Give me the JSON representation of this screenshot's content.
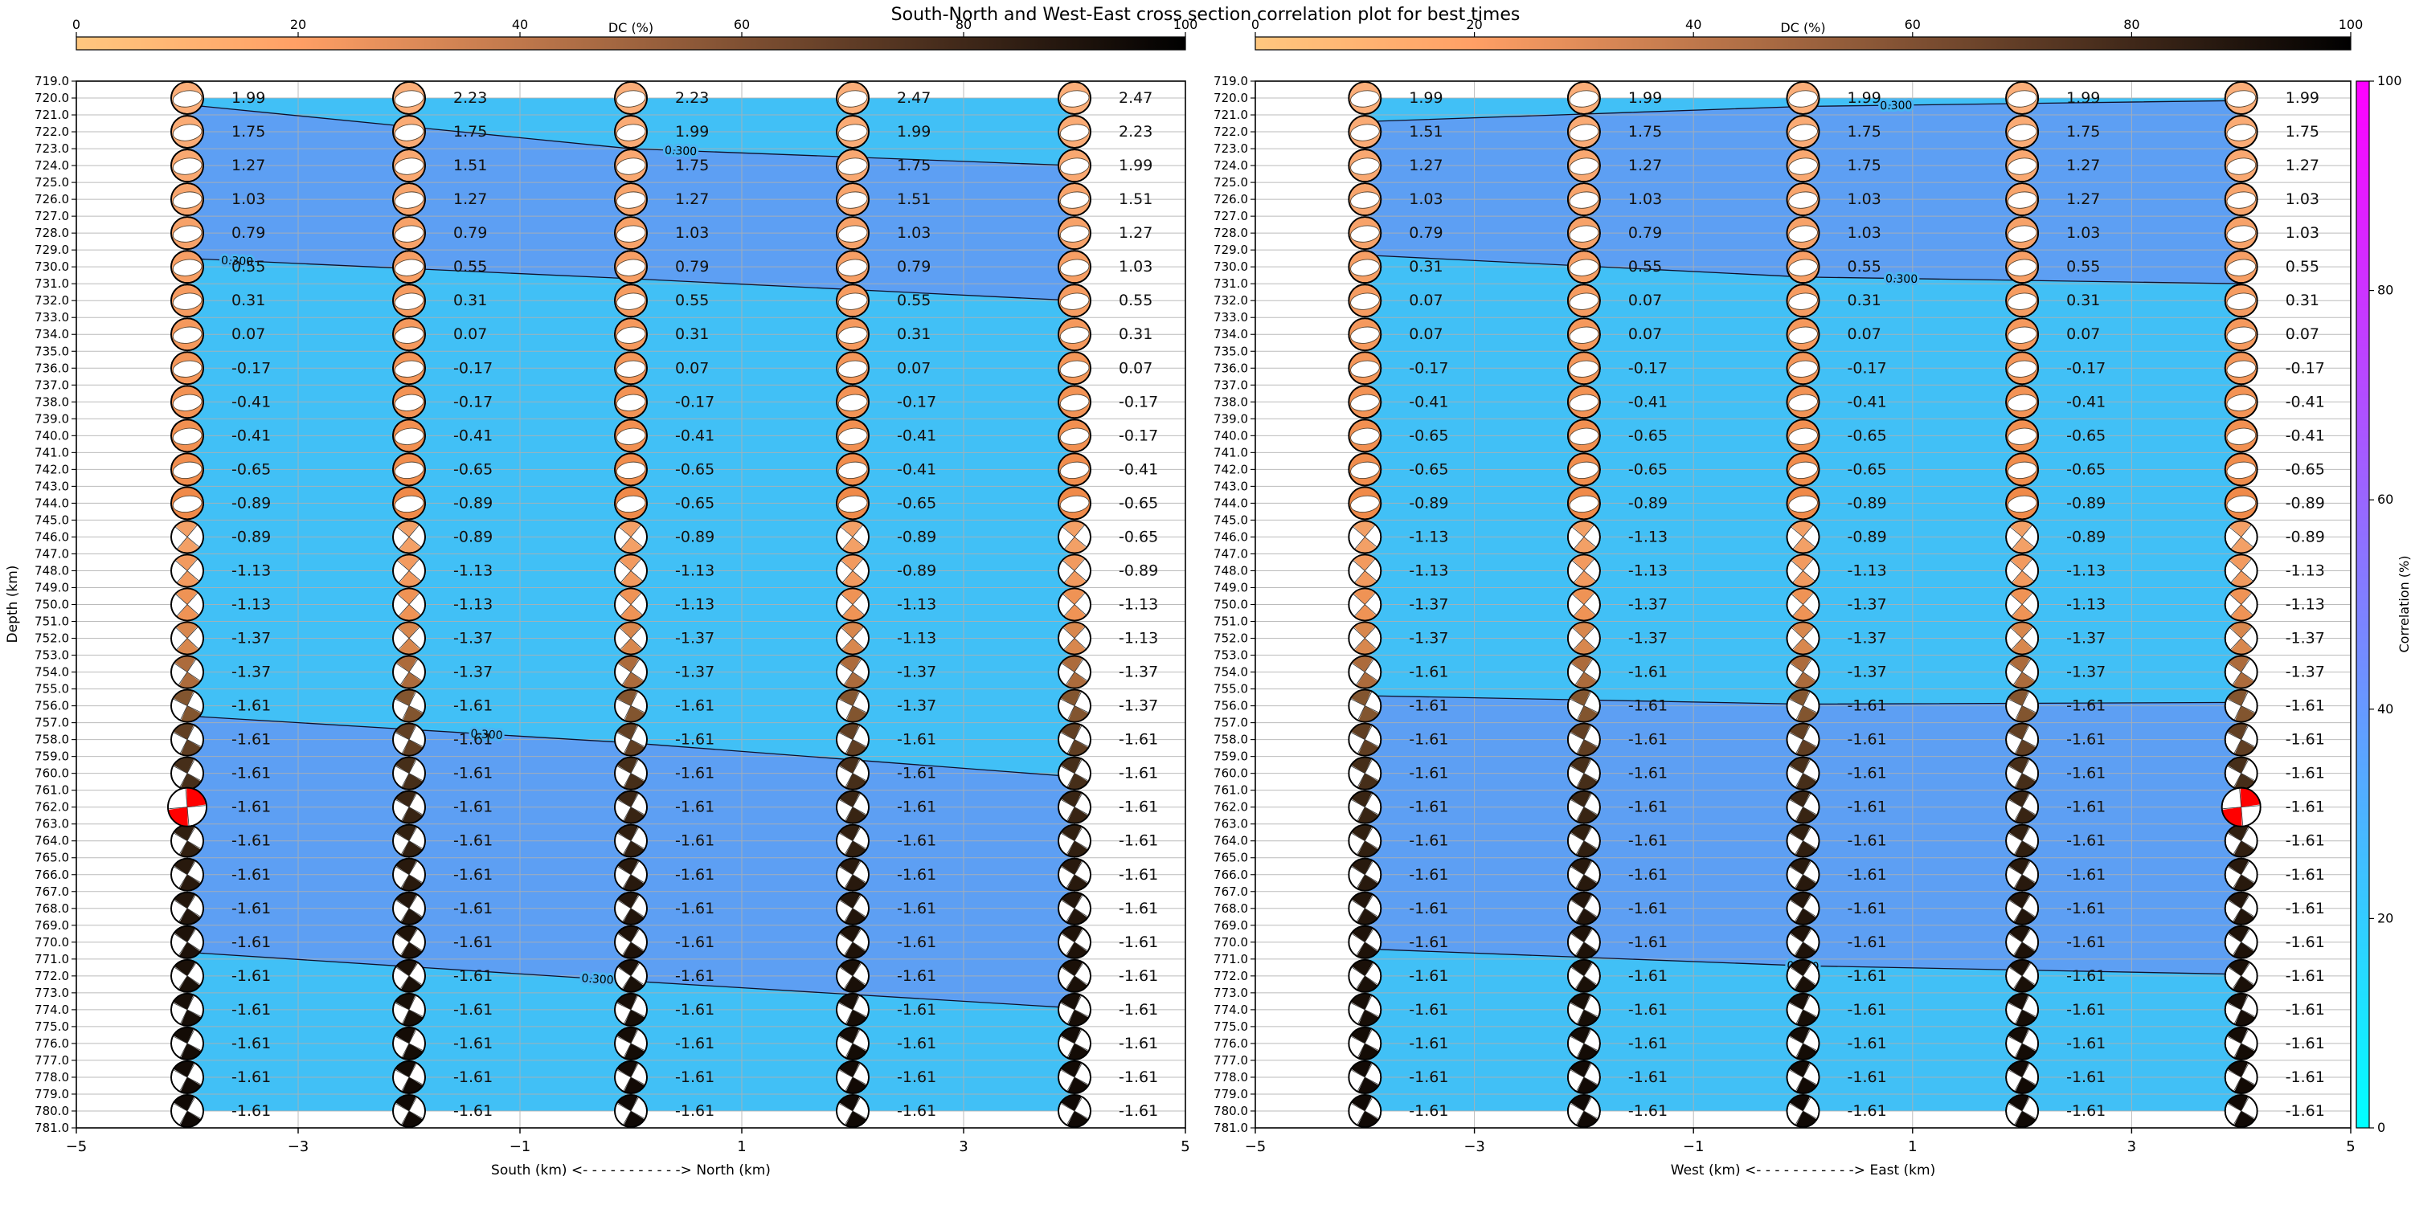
{
  "title": "South-North and West-East cross section correlation plot for best times",
  "chart_data": {
    "type": "scatter",
    "subtype": "focal-mechanism-cross-section-correlation",
    "title": "South-North and West-East cross section correlation plot for best times",
    "depth_axis": {
      "label": "Depth (km)",
      "min": 719.0,
      "max": 781.0,
      "tick_step": 1.0,
      "direction": "down"
    },
    "x_axis_ticks": [
      -5,
      -3,
      -1,
      1,
      3,
      5
    ],
    "dc_colorbar": {
      "label": "DC (%)",
      "ticks": [
        0,
        20,
        40,
        60,
        80,
        100
      ],
      "gradient": [
        {
          "pos": 0,
          "color": "#ffc77f"
        },
        {
          "pos": 20,
          "color": "#ff9f65"
        },
        {
          "pos": 50,
          "color": "#9f643f"
        },
        {
          "pos": 80,
          "color": "#402819"
        },
        {
          "pos": 100,
          "color": "#000000"
        }
      ]
    },
    "correlation_colorbar": {
      "label": "Correlation (%)",
      "ticks": [
        0,
        20,
        40,
        60,
        80,
        100
      ],
      "bottom_color": "#00ffff",
      "top_color": "#ff00ff"
    },
    "fill_colors": {
      "light": "#41c0f6",
      "dark": "#5d9ff3"
    },
    "grid_color": "#b0b0b0",
    "highlight_color": "#ff0000",
    "contour_label": "0.300",
    "ball_columns_x": [
      -4,
      -2,
      0,
      2,
      4
    ],
    "depth_rows": [
      720,
      722,
      724,
      726,
      728,
      730,
      732,
      734,
      736,
      738,
      740,
      742,
      744,
      746,
      748,
      750,
      752,
      754,
      756,
      758,
      760,
      762,
      764,
      766,
      768,
      770,
      772,
      774,
      776,
      778,
      780
    ],
    "row_styles": [
      {
        "depth": 720,
        "glyph": "np",
        "dc_color": "#fbae79"
      },
      {
        "depth": 722,
        "glyph": "np",
        "dc_color": "#faab75"
      },
      {
        "depth": 724,
        "glyph": "np",
        "dc_color": "#f9a871"
      },
      {
        "depth": 726,
        "glyph": "np",
        "dc_color": "#f8a56d"
      },
      {
        "depth": 728,
        "glyph": "np",
        "dc_color": "#f7a269"
      },
      {
        "depth": 730,
        "glyph": "np",
        "dc_color": "#f79f65"
      },
      {
        "depth": 732,
        "glyph": "np",
        "dc_color": "#f69c61"
      },
      {
        "depth": 734,
        "glyph": "np",
        "dc_color": "#f5995d"
      },
      {
        "depth": 736,
        "glyph": "np",
        "dc_color": "#f49659"
      },
      {
        "depth": 738,
        "glyph": "np",
        "dc_color": "#f39355"
      },
      {
        "depth": 740,
        "glyph": "np",
        "dc_color": "#f29051"
      },
      {
        "depth": 742,
        "glyph": "np",
        "dc_color": "#f18d4d"
      },
      {
        "depth": 744,
        "glyph": "np",
        "dc_color": "#f08a49"
      },
      {
        "depth": 746,
        "glyph": "x",
        "dc_color": "#f3a066"
      },
      {
        "depth": 748,
        "glyph": "x",
        "dc_color": "#f29a5f"
      },
      {
        "depth": 750,
        "glyph": "x",
        "dc_color": "#ef9355"
      },
      {
        "depth": 752,
        "glyph": "x",
        "dc_color": "#d8874d"
      },
      {
        "depth": 754,
        "glyph": "x",
        "dc_color": "#ac6b3c"
      },
      {
        "depth": 756,
        "glyph": "x",
        "dc_color": "#82552f"
      },
      {
        "depth": 758,
        "glyph": "x",
        "dc_color": "#603e22"
      },
      {
        "depth": 760,
        "glyph": "x",
        "dc_color": "#462e19"
      },
      {
        "depth": 762,
        "glyph": "x",
        "dc_color": "#382413"
      },
      {
        "depth": 764,
        "glyph": "x",
        "dc_color": "#301f10"
      },
      {
        "depth": 766,
        "glyph": "x",
        "dc_color": "#28190d"
      },
      {
        "depth": 768,
        "glyph": "x",
        "dc_color": "#22150b"
      },
      {
        "depth": 770,
        "glyph": "x",
        "dc_color": "#1e1209"
      },
      {
        "depth": 772,
        "glyph": "x",
        "dc_color": "#1a1008"
      },
      {
        "depth": 774,
        "glyph": "x",
        "dc_color": "#170e07"
      },
      {
        "depth": 776,
        "glyph": "x",
        "dc_color": "#140c06"
      },
      {
        "depth": 778,
        "glyph": "x",
        "dc_color": "#120a05"
      },
      {
        "depth": 780,
        "glyph": "x",
        "dc_color": "#100905"
      }
    ],
    "panels": [
      {
        "name": "south-north",
        "xlabel": "South (km) <- - - - - - - - - - -> North (km)",
        "highlight": {
          "col": 0,
          "depth": 762
        },
        "contours": [
          {
            "level": "0.300",
            "points": [
              [
                -4,
                720.4
              ],
              [
                0,
                723.0
              ],
              [
                4,
                724.0
              ]
            ],
            "label_x": 0.45
          },
          {
            "level": "0.300",
            "points": [
              [
                -4,
                729.5
              ],
              [
                0,
                730.7
              ],
              [
                4,
                732.0
              ]
            ],
            "label_x": -3.55
          },
          {
            "level": "0.300",
            "points": [
              [
                -4,
                756.6
              ],
              [
                0,
                758.2
              ],
              [
                4,
                760.2
              ]
            ],
            "label_x": -1.3
          },
          {
            "level": "0.300",
            "points": [
              [
                -4,
                770.6
              ],
              [
                0,
                772.3
              ],
              [
                4,
                773.9
              ]
            ],
            "label_x": -0.3
          }
        ],
        "values": [
          [
            1.99,
            1.75,
            1.27,
            1.03,
            0.79,
            0.55,
            0.31,
            0.07,
            -0.17,
            -0.41,
            -0.41,
            -0.65,
            -0.89,
            -0.89,
            -1.13,
            -1.13,
            -1.37,
            -1.37,
            -1.61,
            -1.61,
            -1.61,
            -1.61,
            -1.61,
            -1.61,
            -1.61,
            -1.61,
            -1.61,
            -1.61,
            -1.61,
            -1.61,
            -1.61
          ],
          [
            2.23,
            1.75,
            1.51,
            1.27,
            0.79,
            0.55,
            0.31,
            0.07,
            -0.17,
            -0.17,
            -0.41,
            -0.65,
            -0.89,
            -0.89,
            -1.13,
            -1.13,
            -1.37,
            -1.37,
            -1.61,
            -1.61,
            -1.61,
            -1.61,
            -1.61,
            -1.61,
            -1.61,
            -1.61,
            -1.61,
            -1.61,
            -1.61,
            -1.61,
            -1.61
          ],
          [
            2.23,
            1.99,
            1.75,
            1.27,
            1.03,
            0.79,
            0.55,
            0.31,
            0.07,
            -0.17,
            -0.41,
            -0.65,
            -0.65,
            -0.89,
            -1.13,
            -1.13,
            -1.37,
            -1.37,
            -1.61,
            -1.61,
            -1.61,
            -1.61,
            -1.61,
            -1.61,
            -1.61,
            -1.61,
            -1.61,
            -1.61,
            -1.61,
            -1.61,
            -1.61
          ],
          [
            2.47,
            1.99,
            1.75,
            1.51,
            1.03,
            0.79,
            0.55,
            0.31,
            0.07,
            -0.17,
            -0.41,
            -0.41,
            -0.65,
            -0.89,
            -0.89,
            -1.13,
            -1.13,
            -1.37,
            -1.37,
            -1.61,
            -1.61,
            -1.61,
            -1.61,
            -1.61,
            -1.61,
            -1.61,
            -1.61,
            -1.61,
            -1.61,
            -1.61,
            -1.61
          ],
          [
            2.47,
            2.23,
            1.99,
            1.51,
            1.27,
            1.03,
            0.55,
            0.31,
            0.07,
            -0.17,
            -0.17,
            -0.41,
            -0.65,
            -0.65,
            -0.89,
            -1.13,
            -1.13,
            -1.37,
            -1.37,
            -1.61,
            -1.61,
            -1.61,
            -1.61,
            -1.61,
            -1.61,
            -1.61,
            -1.61,
            -1.61,
            -1.61,
            -1.61,
            -1.61
          ]
        ]
      },
      {
        "name": "west-east",
        "xlabel": "West (km) <- - - - - - - - - - -> East (km)",
        "highlight": {
          "col": 4,
          "depth": 762
        },
        "contours": [
          {
            "level": "0.300",
            "points": [
              [
                -4,
                721.4
              ],
              [
                0,
                720.5
              ],
              [
                4,
                720.15
              ]
            ],
            "label_x": 0.85
          },
          {
            "level": "0.300",
            "points": [
              [
                -4,
                729.3
              ],
              [
                0,
                730.6
              ],
              [
                4,
                731.0
              ]
            ],
            "label_x": 0.9
          },
          {
            "level": "0.300",
            "points": [
              [
                -4,
                755.4
              ],
              [
                0,
                755.9
              ],
              [
                4,
                755.8
              ]
            ],
            "label_x": null
          },
          {
            "level": "0.300",
            "points": [
              [
                -4,
                770.4
              ],
              [
                0,
                771.4
              ],
              [
                4,
                771.9
              ]
            ],
            "label_x": 0.0
          }
        ],
        "values": [
          [
            1.99,
            1.51,
            1.27,
            1.03,
            0.79,
            0.31,
            0.07,
            0.07,
            -0.17,
            -0.41,
            -0.65,
            -0.65,
            -0.89,
            -1.13,
            -1.13,
            -1.37,
            -1.37,
            -1.61,
            -1.61,
            -1.61,
            -1.61,
            -1.61,
            -1.61,
            -1.61,
            -1.61,
            -1.61,
            -1.61,
            -1.61,
            -1.61,
            -1.61,
            -1.61
          ],
          [
            1.99,
            1.75,
            1.27,
            1.03,
            0.79,
            0.55,
            0.07,
            0.07,
            -0.17,
            -0.41,
            -0.65,
            -0.65,
            -0.89,
            -1.13,
            -1.13,
            -1.37,
            -1.37,
            -1.61,
            -1.61,
            -1.61,
            -1.61,
            -1.61,
            -1.61,
            -1.61,
            -1.61,
            -1.61,
            -1.61,
            -1.61,
            -1.61,
            -1.61,
            -1.61
          ],
          [
            1.99,
            1.75,
            1.75,
            1.03,
            1.03,
            0.55,
            0.31,
            0.07,
            -0.17,
            -0.41,
            -0.65,
            -0.65,
            -0.89,
            -0.89,
            -1.13,
            -1.37,
            -1.37,
            -1.37,
            -1.61,
            -1.61,
            -1.61,
            -1.61,
            -1.61,
            -1.61,
            -1.61,
            -1.61,
            -1.61,
            -1.61,
            -1.61,
            -1.61,
            -1.61
          ],
          [
            1.99,
            1.75,
            1.27,
            1.27,
            1.03,
            0.55,
            0.31,
            0.07,
            -0.17,
            -0.41,
            -0.65,
            -0.65,
            -0.89,
            -0.89,
            -1.13,
            -1.13,
            -1.37,
            -1.37,
            -1.61,
            -1.61,
            -1.61,
            -1.61,
            -1.61,
            -1.61,
            -1.61,
            -1.61,
            -1.61,
            -1.61,
            -1.61,
            -1.61,
            -1.61
          ],
          [
            1.99,
            1.75,
            1.27,
            1.03,
            1.03,
            0.55,
            0.31,
            0.07,
            -0.17,
            -0.41,
            -0.41,
            -0.65,
            -0.89,
            -0.89,
            -1.13,
            -1.13,
            -1.37,
            -1.37,
            -1.61,
            -1.61,
            -1.61,
            -1.61,
            -1.61,
            -1.61,
            -1.61,
            -1.61,
            -1.61,
            -1.61,
            -1.61,
            -1.61,
            -1.61
          ]
        ]
      }
    ]
  }
}
